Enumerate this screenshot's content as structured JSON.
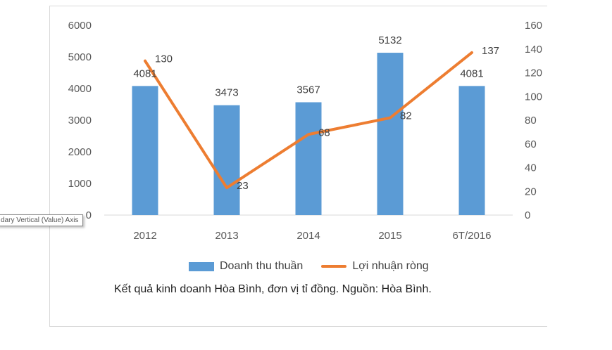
{
  "chart_data": {
    "type": "bar",
    "categories": [
      "2012",
      "2013",
      "2014",
      "2015",
      "6T/2016"
    ],
    "series": [
      {
        "name": "Doanh thu thuần",
        "type": "bar",
        "axis": "primary",
        "color": "#5b9bd5",
        "values": [
          4081,
          3473,
          3567,
          5132,
          4081
        ]
      },
      {
        "name": "Lợi nhuận ròng",
        "type": "line",
        "axis": "secondary",
        "color": "#ed7d31",
        "values": [
          130,
          23,
          68,
          82,
          137
        ]
      }
    ],
    "ylim": [
      0,
      6000
    ],
    "y2lim": [
      0,
      160
    ],
    "yticks": [
      "0",
      "1000",
      "2000",
      "3000",
      "4000",
      "5000",
      "6000"
    ],
    "y2ticks": [
      "0",
      "20",
      "40",
      "60",
      "80",
      "100",
      "120",
      "140",
      "160"
    ],
    "grid": false,
    "legend_position": "bottom"
  },
  "caption": "Kết quả kinh doanh Hòa Bình, đơn vị tỉ đồng. Nguồn: Hòa Bình.",
  "tooltip": "dary Vertical (Value) Axis"
}
